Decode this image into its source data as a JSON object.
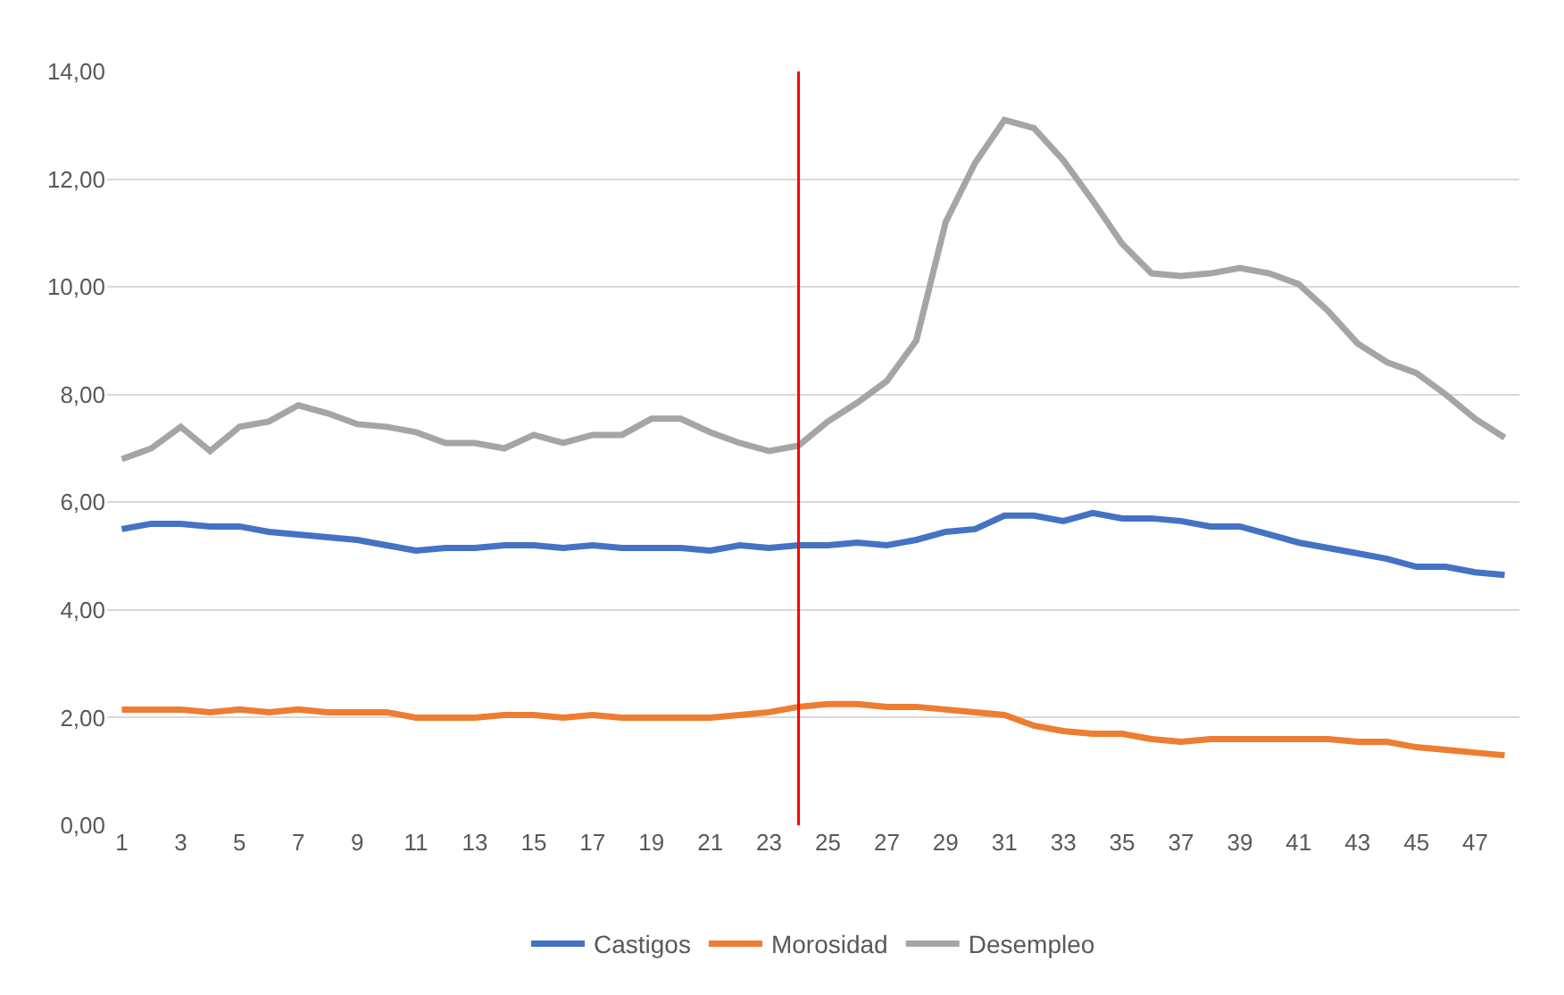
{
  "chart_data": {
    "type": "line",
    "x": [
      1,
      2,
      3,
      4,
      5,
      6,
      7,
      8,
      9,
      10,
      11,
      12,
      13,
      14,
      15,
      16,
      17,
      18,
      19,
      20,
      21,
      22,
      23,
      24,
      25,
      26,
      27,
      28,
      29,
      30,
      31,
      32,
      33,
      34,
      35,
      36,
      37,
      38,
      39,
      40,
      41,
      42,
      43,
      44,
      45,
      46,
      47,
      48
    ],
    "series": [
      {
        "name": "Castigos",
        "color": "#4472c4",
        "values": [
          5.5,
          5.6,
          5.6,
          5.55,
          5.55,
          5.45,
          5.4,
          5.35,
          5.3,
          5.2,
          5.1,
          5.15,
          5.15,
          5.2,
          5.2,
          5.15,
          5.2,
          5.15,
          5.15,
          5.15,
          5.1,
          5.2,
          5.15,
          5.2,
          5.2,
          5.25,
          5.2,
          5.3,
          5.45,
          5.5,
          5.75,
          5.75,
          5.65,
          5.8,
          5.7,
          5.7,
          5.65,
          5.55,
          5.55,
          5.4,
          5.25,
          5.15,
          5.05,
          4.95,
          4.8,
          4.8,
          4.7,
          4.65
        ]
      },
      {
        "name": "Morosidad",
        "color": "#ed7d31",
        "values": [
          2.15,
          2.15,
          2.15,
          2.1,
          2.15,
          2.1,
          2.15,
          2.1,
          2.1,
          2.1,
          2.0,
          2.0,
          2.0,
          2.05,
          2.05,
          2.0,
          2.05,
          2.0,
          2.0,
          2.0,
          2.0,
          2.05,
          2.1,
          2.2,
          2.25,
          2.25,
          2.2,
          2.2,
          2.15,
          2.1,
          2.05,
          1.85,
          1.75,
          1.7,
          1.7,
          1.6,
          1.55,
          1.6,
          1.6,
          1.6,
          1.6,
          1.6,
          1.55,
          1.55,
          1.45,
          1.4,
          1.35,
          1.3
        ]
      },
      {
        "name": "Desempleo",
        "color": "#a5a5a5",
        "values": [
          6.8,
          7.0,
          7.4,
          6.95,
          7.4,
          7.5,
          7.8,
          7.65,
          7.45,
          7.4,
          7.3,
          7.1,
          7.1,
          7.0,
          7.25,
          7.1,
          7.25,
          7.25,
          7.55,
          7.55,
          7.3,
          7.1,
          6.95,
          7.05,
          7.5,
          7.85,
          8.25,
          9.0,
          11.2,
          12.3,
          13.1,
          12.95,
          12.35,
          11.6,
          10.8,
          10.25,
          10.2,
          10.25,
          10.35,
          10.25,
          10.05,
          9.55,
          8.95,
          8.6,
          8.4,
          8.0,
          7.55,
          7.2
        ]
      }
    ],
    "xlim": [
      0.5,
      48.5
    ],
    "xticks": [
      1,
      3,
      5,
      7,
      9,
      11,
      13,
      15,
      17,
      19,
      21,
      23,
      25,
      27,
      29,
      31,
      33,
      35,
      37,
      39,
      41,
      43,
      45,
      47
    ],
    "ylim": [
      0,
      14
    ],
    "yticks": [
      {
        "value": 0,
        "label": "0,00"
      },
      {
        "value": 2,
        "label": "2,00"
      },
      {
        "value": 4,
        "label": "4,00"
      },
      {
        "value": 6,
        "label": "6,00"
      },
      {
        "value": 8,
        "label": "8,00"
      },
      {
        "value": 10,
        "label": "10,00"
      },
      {
        "value": 12,
        "label": "12,00"
      },
      {
        "value": 14,
        "label": "14,00"
      }
    ],
    "ref_lines": [
      {
        "axis": "x",
        "value": 24,
        "color": "#ff0000"
      }
    ],
    "grid": "y",
    "legend": "bottom",
    "marker": "none",
    "line_style": "solid"
  }
}
